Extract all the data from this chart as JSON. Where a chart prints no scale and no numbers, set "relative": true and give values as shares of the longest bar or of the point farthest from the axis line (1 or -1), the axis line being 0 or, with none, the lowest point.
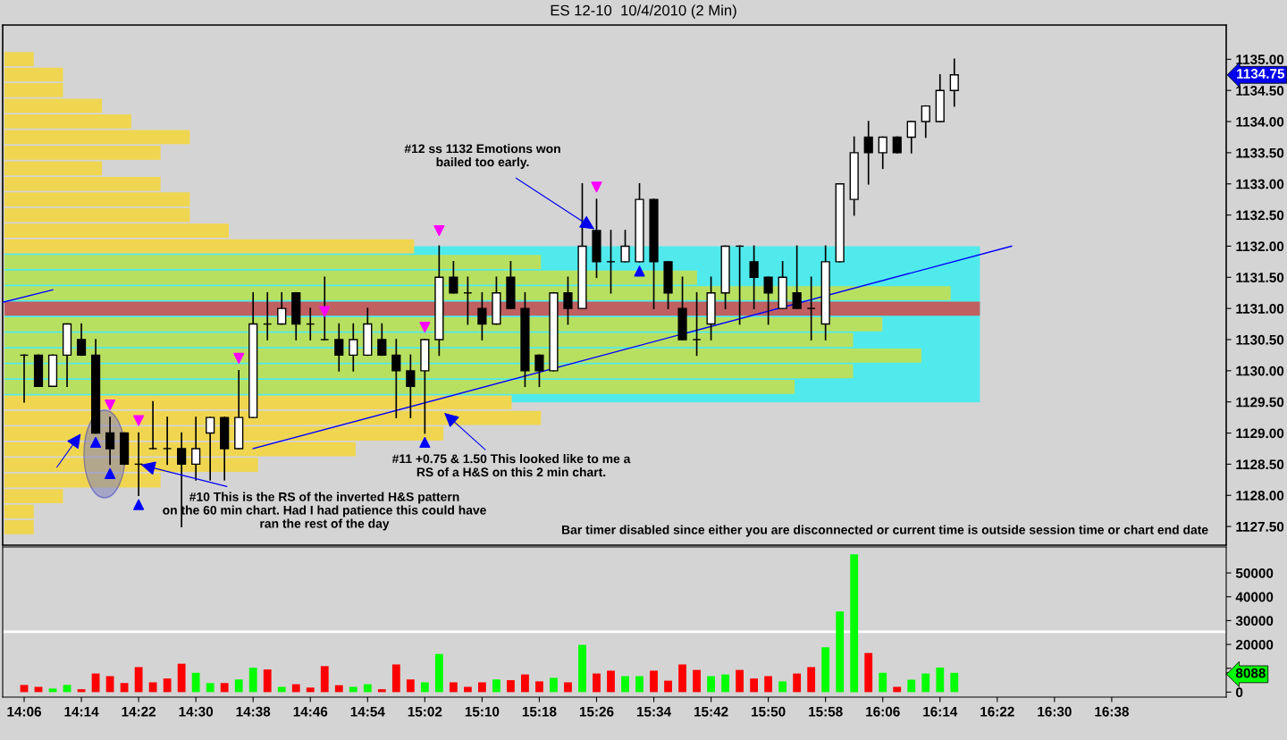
{
  "chart_data": [
    {
      "type": "candlestick",
      "title": "ES 12-10  10/4/2010 (2 Min)",
      "x": [
        "2010-10-04T14:06",
        "2010-10-04T14:08",
        "2010-10-04T14:10",
        "2010-10-04T14:12",
        "2010-10-04T14:14",
        "2010-10-04T14:16",
        "2010-10-04T14:18",
        "2010-10-04T14:20",
        "2010-10-04T14:22",
        "2010-10-04T14:24",
        "2010-10-04T14:26",
        "2010-10-04T14:28",
        "2010-10-04T14:30",
        "2010-10-04T14:32",
        "2010-10-04T14:34",
        "2010-10-04T14:36",
        "2010-10-04T14:38",
        "2010-10-04T14:40",
        "2010-10-04T14:42",
        "2010-10-04T14:44",
        "2010-10-04T14:46",
        "2010-10-04T14:48",
        "2010-10-04T14:50",
        "2010-10-04T14:52",
        "2010-10-04T14:54",
        "2010-10-04T14:56",
        "2010-10-04T14:58",
        "2010-10-04T15:00",
        "2010-10-04T15:02",
        "2010-10-04T15:04",
        "2010-10-04T15:06",
        "2010-10-04T15:08",
        "2010-10-04T15:10",
        "2010-10-04T15:12",
        "2010-10-04T15:14",
        "2010-10-04T15:16",
        "2010-10-04T15:18",
        "2010-10-04T15:20",
        "2010-10-04T15:22",
        "2010-10-04T15:24",
        "2010-10-04T15:26",
        "2010-10-04T15:28",
        "2010-10-04T15:30",
        "2010-10-04T15:32",
        "2010-10-04T15:34",
        "2010-10-04T15:36",
        "2010-10-04T15:38",
        "2010-10-04T15:40",
        "2010-10-04T15:42",
        "2010-10-04T15:44",
        "2010-10-04T15:46",
        "2010-10-04T15:48",
        "2010-10-04T15:50",
        "2010-10-04T15:52",
        "2010-10-04T15:54",
        "2010-10-04T15:56",
        "2010-10-04T15:58",
        "2010-10-04T16:00",
        "2010-10-04T16:02",
        "2010-10-04T16:04",
        "2010-10-04T16:06",
        "2010-10-04T16:08",
        "2010-10-04T16:10",
        "2010-10-04T16:12",
        "2010-10-04T16:14",
        "2010-10-04T16:16"
      ],
      "ohlc": [
        [
          1130.25,
          1130.25,
          1129.5,
          1130.25
        ],
        [
          1130.25,
          1130.25,
          1129.75,
          1129.75
        ],
        [
          1129.75,
          1130.25,
          1129.75,
          1130.25
        ],
        [
          1130.25,
          1130.75,
          1129.75,
          1130.75
        ],
        [
          1130.5,
          1130.75,
          1130.25,
          1130.25
        ],
        [
          1130.25,
          1130.5,
          1129.0,
          1129.0
        ],
        [
          1129.0,
          1129.25,
          1128.5,
          1128.75
        ],
        [
          1129.0,
          1129.0,
          1128.5,
          1128.5
        ],
        [
          1128.5,
          1129.0,
          1128.0,
          1128.5
        ],
        [
          1128.75,
          1129.5,
          1128.75,
          1128.75
        ],
        [
          1128.75,
          1129.25,
          1128.5,
          1128.75
        ],
        [
          1128.75,
          1129.0,
          1127.5,
          1128.5
        ],
        [
          1128.5,
          1129.25,
          1128.25,
          1128.75
        ],
        [
          1129.0,
          1129.25,
          1128.25,
          1129.25
        ],
        [
          1129.25,
          1129.25,
          1128.25,
          1128.75
        ],
        [
          1128.75,
          1130.0,
          1128.75,
          1129.25
        ],
        [
          1129.25,
          1131.25,
          1129.25,
          1130.75
        ],
        [
          1130.75,
          1131.25,
          1130.5,
          1130.75
        ],
        [
          1130.75,
          1131.25,
          1130.75,
          1131.0
        ],
        [
          1131.25,
          1131.25,
          1130.5,
          1130.75
        ],
        [
          1130.75,
          1131.0,
          1130.5,
          1130.75
        ],
        [
          1130.5,
          1131.5,
          1130.5,
          1130.5
        ],
        [
          1130.5,
          1130.75,
          1130.0,
          1130.25
        ],
        [
          1130.25,
          1130.75,
          1130.0,
          1130.5
        ],
        [
          1130.25,
          1131.0,
          1130.25,
          1130.75
        ],
        [
          1130.5,
          1130.75,
          1130.25,
          1130.25
        ],
        [
          1130.25,
          1130.5,
          1129.25,
          1130.0
        ],
        [
          1130.0,
          1130.25,
          1129.25,
          1129.75
        ],
        [
          1130.0,
          1130.5,
          1129.0,
          1130.5
        ],
        [
          1130.5,
          1132.0,
          1130.25,
          1131.5
        ],
        [
          1131.5,
          1131.75,
          1131.25,
          1131.25
        ],
        [
          1131.25,
          1131.5,
          1130.75,
          1131.25
        ],
        [
          1131.0,
          1131.25,
          1130.5,
          1130.75
        ],
        [
          1130.75,
          1131.5,
          1130.75,
          1131.25
        ],
        [
          1131.5,
          1131.75,
          1131.0,
          1131.0
        ],
        [
          1131.0,
          1131.25,
          1129.75,
          1130.0
        ],
        [
          1130.25,
          1130.25,
          1129.75,
          1130.0
        ],
        [
          1130.0,
          1131.25,
          1130.0,
          1131.25
        ],
        [
          1131.25,
          1131.5,
          1130.75,
          1131.0
        ],
        [
          1131.0,
          1133.0,
          1131.0,
          1132.0
        ],
        [
          1132.25,
          1132.75,
          1131.5,
          1131.75
        ],
        [
          1131.75,
          1132.25,
          1131.25,
          1131.75
        ],
        [
          1131.75,
          1132.25,
          1131.75,
          1132.0
        ],
        [
          1131.75,
          1133.0,
          1131.75,
          1132.75
        ],
        [
          1132.75,
          1132.75,
          1131.0,
          1131.75
        ],
        [
          1131.75,
          1131.75,
          1131.0,
          1131.25
        ],
        [
          1131.0,
          1131.5,
          1130.5,
          1130.5
        ],
        [
          1130.5,
          1131.25,
          1130.25,
          1130.5
        ],
        [
          1130.75,
          1131.5,
          1130.5,
          1131.25
        ],
        [
          1131.25,
          1132.0,
          1131.0,
          1132.0
        ],
        [
          1132.0,
          1132.0,
          1130.75,
          1132.0
        ],
        [
          1131.75,
          1132.0,
          1131.0,
          1131.5
        ],
        [
          1131.5,
          1131.5,
          1130.75,
          1131.25
        ],
        [
          1131.0,
          1131.75,
          1131.0,
          1131.5
        ],
        [
          1131.25,
          1132.0,
          1131.0,
          1131.0
        ],
        [
          1131.0,
          1131.5,
          1130.5,
          1131.0
        ],
        [
          1130.75,
          1132.0,
          1130.5,
          1131.75
        ],
        [
          1131.75,
          1133.0,
          1131.75,
          1133.0
        ],
        [
          1132.75,
          1133.75,
          1132.5,
          1133.5
        ],
        [
          1133.75,
          1134.0,
          1133.0,
          1133.5
        ],
        [
          1133.5,
          1133.75,
          1133.25,
          1133.75
        ],
        [
          1133.75,
          1133.75,
          1133.5,
          1133.5
        ],
        [
          1133.75,
          1134.0,
          1133.5,
          1134.0
        ],
        [
          1134.0,
          1134.25,
          1133.75,
          1134.25
        ],
        [
          1134.0,
          1134.75,
          1134.0,
          1134.5
        ],
        [
          1134.5,
          1135.0,
          1134.25,
          1134.75
        ]
      ],
      "series": [
        {
          "type": "line",
          "color": "#0000ff",
          "x": [
            "2010-10-04T14:38",
            "2010-10-04T16:24"
          ],
          "values": [
            1128.75,
            1132.0
          ]
        },
        {
          "type": "line",
          "color": "#0000ff",
          "x": [
            "2010-10-04T14:03",
            "2010-10-04T14:10"
          ],
          "values": [
            1131.1,
            1131.3
          ]
        },
        {
          "type": "scatter",
          "color": "#ff00ff",
          "marker": "triangle_down",
          "x": [
            "2010-10-04T14:18",
            "2010-10-04T14:22",
            "2010-10-04T14:36",
            "2010-10-04T14:48",
            "2010-10-04T15:02",
            "2010-10-04T15:04",
            "2010-10-04T15:26"
          ],
          "values": [
            1129.45,
            1129.2,
            1130.2,
            1130.95,
            1130.7,
            1132.25,
            1132.95
          ]
        },
        {
          "type": "scatter",
          "color": "#0000ff",
          "marker": "triangle",
          "x": [
            "2010-10-04T14:16",
            "2010-10-04T14:18",
            "2010-10-04T14:22",
            "2010-10-04T15:02",
            "2010-10-04T15:32"
          ],
          "values": [
            1128.85,
            1128.35,
            1127.85,
            1128.85,
            1131.6
          ]
        }
      ],
      "xlim": [
        "2010-10-04T14:03",
        "2010-10-04T16:54"
      ],
      "ylim": [
        1127.2,
        1135.55
      ],
      "yticks": [
        {
          "value": 1127.5,
          "label": "1127.50"
        },
        {
          "value": 1128.0,
          "label": "1128.00"
        },
        {
          "value": 1128.5,
          "label": "1128.50"
        },
        {
          "value": 1129.0,
          "label": "1129.00"
        },
        {
          "value": 1129.5,
          "label": "1129.50"
        },
        {
          "value": 1130.0,
          "label": "1130.00"
        },
        {
          "value": 1130.5,
          "label": "1130.50"
        },
        {
          "value": 1131.0,
          "label": "1131.00"
        },
        {
          "value": 1131.5,
          "label": "1131.50"
        },
        {
          "value": 1132.0,
          "label": "1132.00"
        },
        {
          "value": 1132.5,
          "label": "1132.50"
        },
        {
          "value": 1133.0,
          "label": "1133.00"
        },
        {
          "value": 1133.5,
          "label": "1133.50"
        },
        {
          "value": 1134.0,
          "label": "1134.00"
        },
        {
          "value": 1134.5,
          "label": "1134.50"
        },
        {
          "value": 1135.0,
          "label": "1135.00"
        }
      ],
      "tick_labels": "y",
      "annotations": [
        {
          "text": "#12 ss 1132 Emotions won\nbailed too early.",
          "x": "2010-10-04T15:26",
          "y": 1132.25
        },
        "#11 +0.75 & 1.50 This looked like to me a\nRS of a H&S on this 2 min chart.",
        {
          "text": "#10 This is the RS of the inverted H&S pattern\non the 60 min chart. Had I had patience this could have\nran the rest of the day",
          "x": "2010-10-04T14:22",
          "y": 1128.5
        },
        "Bar timer disabled since either you are disconnected or current time is outside session time or chart end date",
        "1134.75"
      ]
    },
    {
      "type": "bar",
      "orientation": "horizontal",
      "relative": true,
      "categories": [
        null,
        null,
        null,
        null,
        null,
        null,
        null,
        null,
        null,
        null,
        null,
        null,
        null,
        null,
        null,
        null,
        null,
        null,
        null,
        null,
        null,
        null,
        null,
        null,
        null,
        null,
        null,
        null,
        null,
        null,
        null
      ],
      "values": [
        0.03,
        0.06,
        0.06,
        0.1,
        0.13,
        0.19,
        0.16,
        0.1,
        0.16,
        0.19,
        0.19,
        0.23,
        0.42,
        0.55,
        0.71,
        0.97,
        1,
        0.9,
        0.87,
        0.94,
        0.87,
        0.81,
        0.52,
        0.55,
        0.45,
        0.36,
        0.26,
        0.16,
        0.06,
        0.03,
        0.03
      ],
      "colors": [
        "#f0d650",
        "#f0d650",
        "#f0d650",
        "#f0d650",
        "#f0d650",
        "#f0d650",
        "#f0d650",
        "#f0d650",
        "#f0d650",
        "#f0d650",
        "#f0d650",
        "#f0d650",
        "#f0d650",
        "#b8e060",
        "#b8e060",
        "#b8e060",
        "#c06060",
        "#b8e060",
        "#b8e060",
        "#b8e060",
        "#b8e060",
        "#b8e060",
        "#f0d650",
        "#f0d650",
        "#f0d650",
        "#f0d650",
        "#f0d650",
        "#f0d650",
        "#f0d650",
        "#f0d650",
        "#f0d650"
      ]
    },
    {
      "type": "bar",
      "x": [
        "2010-10-04T14:06",
        "2010-10-04T14:08",
        "2010-10-04T14:10",
        "2010-10-04T14:12",
        "2010-10-04T14:14",
        "2010-10-04T14:16",
        "2010-10-04T14:18",
        "2010-10-04T14:20",
        "2010-10-04T14:22",
        "2010-10-04T14:24",
        "2010-10-04T14:26",
        "2010-10-04T14:28",
        "2010-10-04T14:30",
        "2010-10-04T14:32",
        "2010-10-04T14:34",
        "2010-10-04T14:36",
        "2010-10-04T14:38",
        "2010-10-04T14:40",
        "2010-10-04T14:42",
        "2010-10-04T14:44",
        "2010-10-04T14:46",
        "2010-10-04T14:48",
        "2010-10-04T14:50",
        "2010-10-04T14:52",
        "2010-10-04T14:54",
        "2010-10-04T14:56",
        "2010-10-04T14:58",
        "2010-10-04T15:00",
        "2010-10-04T15:02",
        "2010-10-04T15:04",
        "2010-10-04T15:06",
        "2010-10-04T15:08",
        "2010-10-04T15:10",
        "2010-10-04T15:12",
        "2010-10-04T15:14",
        "2010-10-04T15:16",
        "2010-10-04T15:18",
        "2010-10-04T15:20",
        "2010-10-04T15:22",
        "2010-10-04T15:24",
        "2010-10-04T15:26",
        "2010-10-04T15:28",
        "2010-10-04T15:30",
        "2010-10-04T15:32",
        "2010-10-04T15:34",
        "2010-10-04T15:36",
        "2010-10-04T15:38",
        "2010-10-04T15:40",
        "2010-10-04T15:42",
        "2010-10-04T15:44",
        "2010-10-04T15:46",
        "2010-10-04T15:48",
        "2010-10-04T15:50",
        "2010-10-04T15:52",
        "2010-10-04T15:54",
        "2010-10-04T15:56",
        "2010-10-04T15:58",
        "2010-10-04T16:00",
        "2010-10-04T16:02",
        "2010-10-04T16:04",
        "2010-10-04T16:06",
        "2010-10-04T16:08",
        "2010-10-04T16:10",
        "2010-10-04T16:12",
        "2010-10-04T16:14",
        "2010-10-04T16:16"
      ],
      "values": [
        3000,
        2200,
        1500,
        3000,
        1200,
        7800,
        6700,
        3800,
        10500,
        4100,
        5700,
        11900,
        8100,
        3800,
        3800,
        5300,
        10200,
        9500,
        2200,
        3300,
        1900,
        10900,
        2900,
        2200,
        3300,
        1200,
        11600,
        5300,
        4100,
        16000,
        4100,
        2200,
        4100,
        5300,
        5000,
        7400,
        4500,
        6000,
        4100,
        19800,
        7800,
        9000,
        6700,
        6700,
        9000,
        4800,
        11600,
        9300,
        6700,
        7400,
        9300,
        5700,
        6700,
        4500,
        7800,
        10500,
        18800,
        33800,
        57800,
        16400,
        8100,
        2200,
        5200,
        7800,
        10300,
        8088
      ],
      "colors": [
        "#ff0000",
        "#ff0000",
        "#00ff00",
        "#00ff00",
        "#ff0000",
        "#ff0000",
        "#ff0000",
        "#ff0000",
        "#ff0000",
        "#ff0000",
        "#ff0000",
        "#ff0000",
        "#00ff00",
        "#00ff00",
        "#ff0000",
        "#00ff00",
        "#00ff00",
        "#ff0000",
        "#00ff00",
        "#ff0000",
        "#ff0000",
        "#ff0000",
        "#ff0000",
        "#00ff00",
        "#00ff00",
        "#ff0000",
        "#ff0000",
        "#ff0000",
        "#00ff00",
        "#00ff00",
        "#ff0000",
        "#ff0000",
        "#ff0000",
        "#00ff00",
        "#ff0000",
        "#ff0000",
        "#ff0000",
        "#00ff00",
        "#ff0000",
        "#00ff00",
        "#ff0000",
        "#ff0000",
        "#00ff00",
        "#00ff00",
        "#ff0000",
        "#ff0000",
        "#ff0000",
        "#ff0000",
        "#00ff00",
        "#00ff00",
        "#ff0000",
        "#ff0000",
        "#ff0000",
        "#00ff00",
        "#ff0000",
        "#ff0000",
        "#00ff00",
        "#00ff00",
        "#00ff00",
        "#ff0000",
        "#00ff00",
        "#ff0000",
        "#00ff00",
        "#00ff00",
        "#00ff00",
        "#00ff00"
      ],
      "xlim": [
        "2010-10-04T14:03",
        "2010-10-04T16:54"
      ],
      "xticks": [
        {
          "value": "2010-10-04T14:06",
          "label": "14:06"
        },
        {
          "value": "2010-10-04T14:14",
          "label": "14:14"
        },
        {
          "value": "2010-10-04T14:22",
          "label": "14:22"
        },
        {
          "value": "2010-10-04T14:30",
          "label": "14:30"
        },
        {
          "value": "2010-10-04T14:38",
          "label": "14:38"
        },
        {
          "value": "2010-10-04T14:46",
          "label": "14:46"
        },
        {
          "value": "2010-10-04T14:54",
          "label": "14:54"
        },
        {
          "value": "2010-10-04T15:02",
          "label": "15:02"
        },
        {
          "value": "2010-10-04T15:10",
          "label": "15:10"
        },
        {
          "value": "2010-10-04T15:18",
          "label": "15:18"
        },
        {
          "value": "2010-10-04T15:26",
          "label": "15:26"
        },
        {
          "value": "2010-10-04T15:34",
          "label": "15:34"
        },
        {
          "value": "2010-10-04T15:42",
          "label": "15:42"
        },
        {
          "value": "2010-10-04T15:50",
          "label": "15:50"
        },
        {
          "value": "2010-10-04T15:58",
          "label": "15:58"
        },
        {
          "value": "2010-10-04T16:06",
          "label": "16:06"
        },
        {
          "value": "2010-10-04T16:14",
          "label": "16:14"
        },
        {
          "value": "2010-10-04T16:22",
          "label": "16:22"
        },
        {
          "value": "2010-10-04T16:30",
          "label": "16:30"
        },
        {
          "value": "2010-10-04T16:38",
          "label": "16:38"
        }
      ],
      "ylim": [
        -2100,
        60900
      ],
      "yticks": [
        0,
        {
          "value": 8088,
          "label": "8088"
        },
        {
          "value": 10000,
          "label": null
        },
        20000,
        30000,
        40000,
        50000
      ],
      "ref_lines": [
        {
          "axis": "y",
          "value": 25300,
          "color": "#ffffff"
        }
      ]
    }
  ]
}
